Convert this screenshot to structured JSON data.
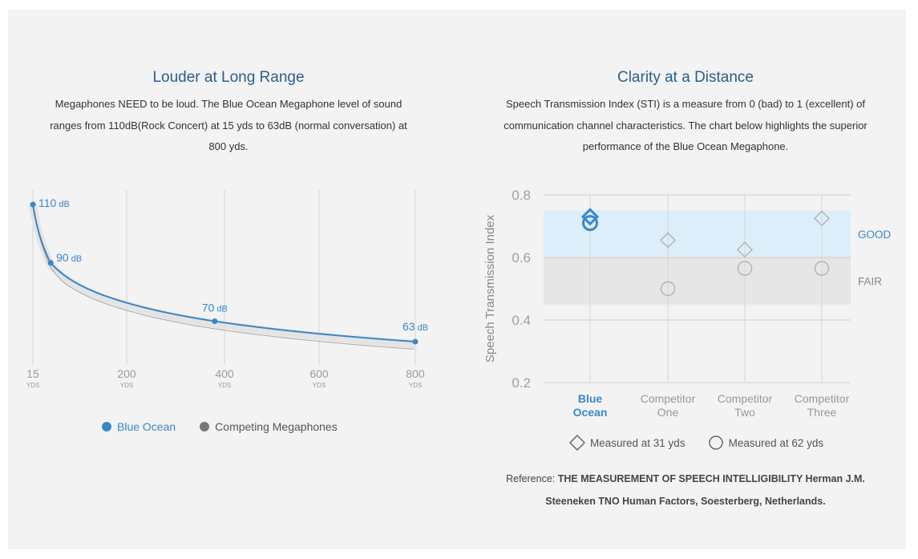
{
  "left": {
    "title": "Louder at Long Range",
    "desc": "Megaphones NEED to be loud. The Blue Ocean Megaphone level of sound ranges from 110dB(Rock Concert) at 15 yds to 63dB (normal conversation) at 800 yds.",
    "legend": [
      {
        "label": "Blue Ocean",
        "color": "#3a87c8"
      },
      {
        "label": "Competing Megaphones",
        "color": "#777777"
      }
    ]
  },
  "right": {
    "title": "Clarity at a Distance",
    "desc": "Speech Transmission Index (STI) is a measure from 0 (bad) to 1 (excellent) of communication channel characteristics. The chart below highlights the superior performance of the Blue Ocean Megaphone.",
    "legend": [
      {
        "label": "Measured at 31 yds",
        "marker": "diamond"
      },
      {
        "label": "Measured at 62 yds",
        "marker": "circle"
      }
    ],
    "reference_prefix": "Reference: ",
    "reference_bold": "THE MEASUREMENT OF SPEECH INTELLIGIBILITY Herman J.M. Steeneken TNO Human Factors, Soesterberg, Netherlands."
  },
  "chart_data": [
    {
      "type": "line",
      "title": "Louder at Long Range",
      "x_ticks": [
        15,
        200,
        400,
        600,
        800
      ],
      "x_unit": "YDS",
      "series": [
        {
          "name": "Blue Ocean",
          "color": "#3a87c8",
          "x": [
            15,
            50,
            380,
            800
          ],
          "y": [
            110,
            90,
            70,
            63
          ],
          "labels": [
            "110",
            "90",
            "70",
            "63"
          ],
          "label_unit": "dB"
        },
        {
          "name": "Competing Megaphones",
          "color": "#999999"
        }
      ],
      "grid": true
    },
    {
      "type": "scatter",
      "title": "Clarity at a Distance",
      "ylabel": "Speech Transmission Index",
      "ylim": [
        0.2,
        0.8
      ],
      "y_ticks": [
        "0.2",
        "0.4",
        "0.6",
        "0.8"
      ],
      "categories": [
        "Blue Ocean",
        "Competitor One",
        "Competitor Two",
        "Competitor Three"
      ],
      "category_lines": [
        [
          "Blue",
          "Ocean"
        ],
        [
          "Competitor",
          "One"
        ],
        [
          "Competitor",
          "Two"
        ],
        [
          "Competitor",
          "Three"
        ]
      ],
      "bands": [
        {
          "label": "GOOD",
          "from": 0.6,
          "to": 0.75,
          "color": "#dceef9"
        },
        {
          "label": "FAIR",
          "from": 0.45,
          "to": 0.6,
          "color": "#e6e6e6"
        }
      ],
      "series": [
        {
          "name": "Measured at 31 yds",
          "marker": "diamond",
          "values": [
            0.73,
            0.655,
            0.625,
            0.725
          ]
        },
        {
          "name": "Measured at 62 yds",
          "marker": "circle",
          "values": [
            0.71,
            0.5,
            0.565,
            0.565
          ]
        }
      ],
      "highlight_color": "#3a87c8",
      "grid": true
    }
  ]
}
